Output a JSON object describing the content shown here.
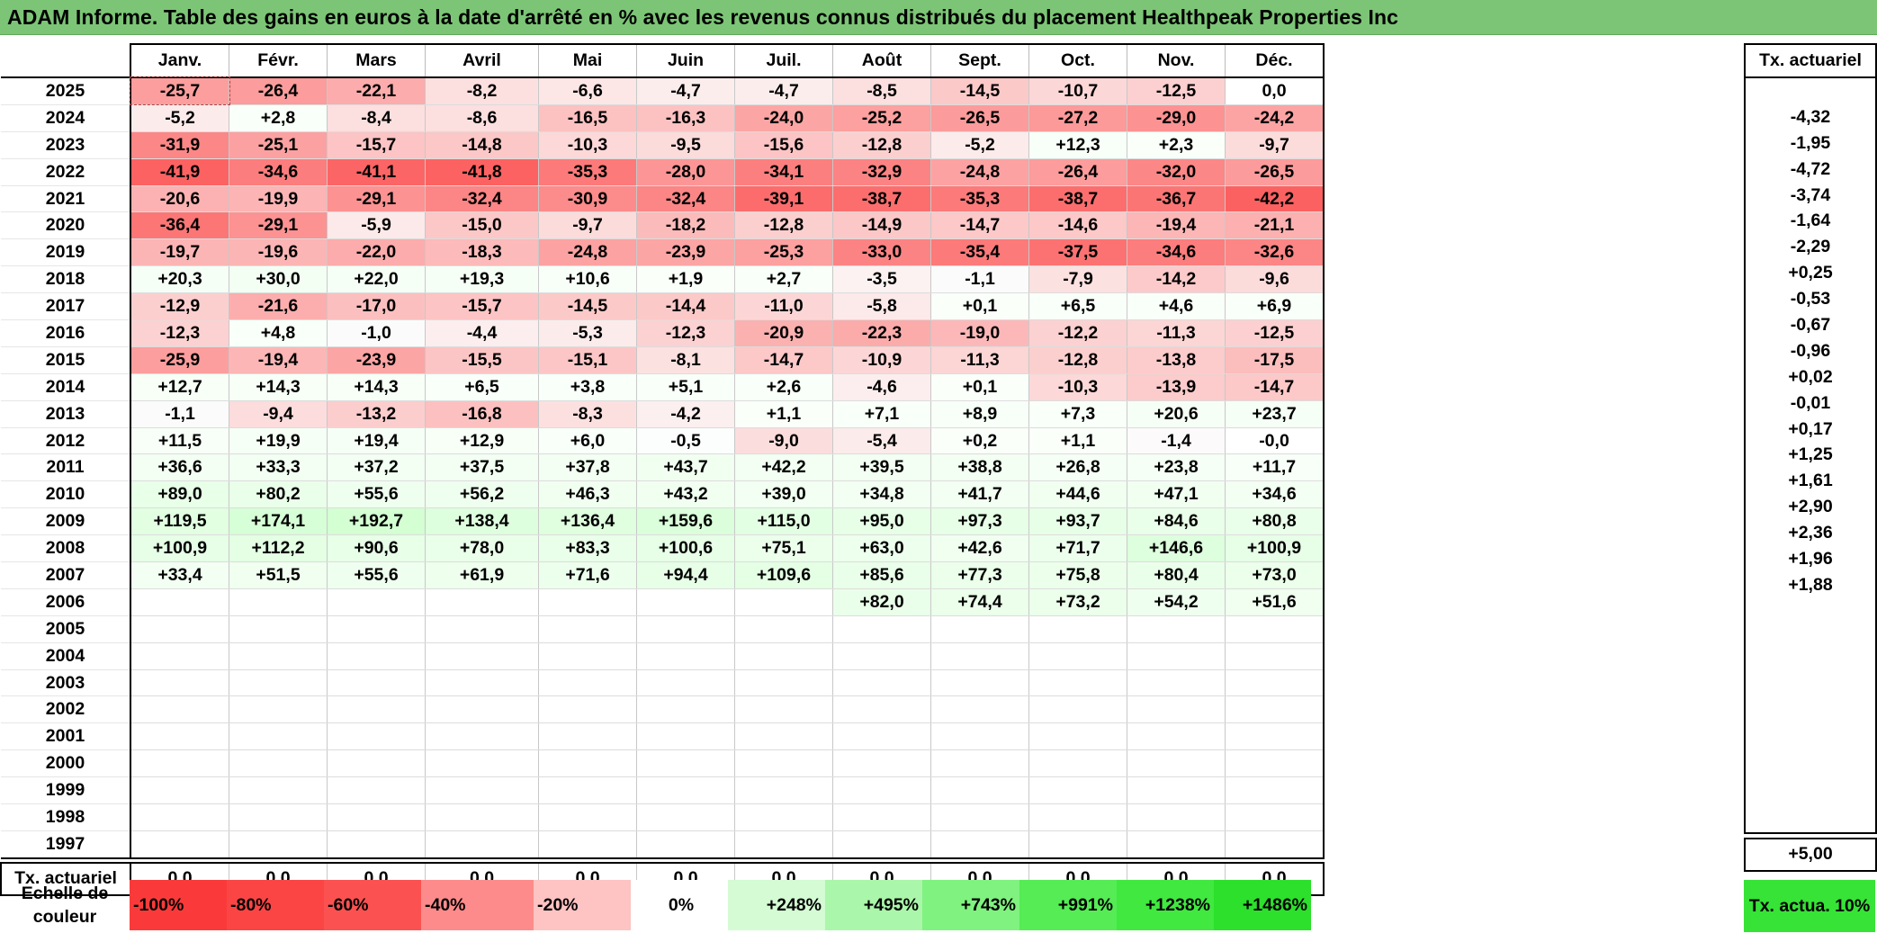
{
  "title": "ADAM Informe. Table des gains en euros à la date d'arrêté en % avec les revenus connus distribués du placement Healthpeak Properties Inc",
  "months": [
    "Janv.",
    "Févr.",
    "Mars",
    "Avril",
    "Mai",
    "Juin",
    "Juil.",
    "Août",
    "Sept.",
    "Oct.",
    "Nov.",
    "Déc."
  ],
  "tx_header": "Tx. actuariel",
  "rows": [
    {
      "year": "2025",
      "values": [
        "-25,7",
        "-26,4",
        "-22,1",
        "-8,2",
        "-6,6",
        "-4,7",
        "-4,7",
        "-8,5",
        "-14,5",
        "-10,7",
        "-12,5",
        "0,0"
      ],
      "tx": ""
    },
    {
      "year": "2024",
      "values": [
        "-5,2",
        "+2,8",
        "-8,4",
        "-8,6",
        "-16,5",
        "-16,3",
        "-24,0",
        "-25,2",
        "-26,5",
        "-27,2",
        "-29,0",
        "-24,2"
      ],
      "tx": "-4,32"
    },
    {
      "year": "2023",
      "values": [
        "-31,9",
        "-25,1",
        "-15,7",
        "-14,8",
        "-10,3",
        "-9,5",
        "-15,6",
        "-12,8",
        "-5,2",
        "+12,3",
        "+2,3",
        "-9,7"
      ],
      "tx": "-1,95"
    },
    {
      "year": "2022",
      "values": [
        "-41,9",
        "-34,6",
        "-41,1",
        "-41,8",
        "-35,3",
        "-28,0",
        "-34,1",
        "-32,9",
        "-24,8",
        "-26,4",
        "-32,0",
        "-26,5"
      ],
      "tx": "-4,72"
    },
    {
      "year": "2021",
      "values": [
        "-20,6",
        "-19,9",
        "-29,1",
        "-32,4",
        "-30,9",
        "-32,4",
        "-39,1",
        "-38,7",
        "-35,3",
        "-38,7",
        "-36,7",
        "-42,2"
      ],
      "tx": "-3,74"
    },
    {
      "year": "2020",
      "values": [
        "-36,4",
        "-29,1",
        "-5,9",
        "-15,0",
        "-9,7",
        "-18,2",
        "-12,8",
        "-14,9",
        "-14,7",
        "-14,6",
        "-19,4",
        "-21,1"
      ],
      "tx": "-1,64"
    },
    {
      "year": "2019",
      "values": [
        "-19,7",
        "-19,6",
        "-22,0",
        "-18,3",
        "-24,8",
        "-23,9",
        "-25,3",
        "-33,0",
        "-35,4",
        "-37,5",
        "-34,6",
        "-32,6"
      ],
      "tx": "-2,29"
    },
    {
      "year": "2018",
      "values": [
        "+20,3",
        "+30,0",
        "+22,0",
        "+19,3",
        "+10,6",
        "+1,9",
        "+2,7",
        "-3,5",
        "-1,1",
        "-7,9",
        "-14,2",
        "-9,6"
      ],
      "tx": "+0,25"
    },
    {
      "year": "2017",
      "values": [
        "-12,9",
        "-21,6",
        "-17,0",
        "-15,7",
        "-14,5",
        "-14,4",
        "-11,0",
        "-5,8",
        "+0,1",
        "+6,5",
        "+4,6",
        "+6,9"
      ],
      "tx": "-0,53"
    },
    {
      "year": "2016",
      "values": [
        "-12,3",
        "+4,8",
        "-1,0",
        "-4,4",
        "-5,3",
        "-12,3",
        "-20,9",
        "-22,3",
        "-19,0",
        "-12,2",
        "-11,3",
        "-12,5"
      ],
      "tx": "-0,67"
    },
    {
      "year": "2015",
      "values": [
        "-25,9",
        "-19,4",
        "-23,9",
        "-15,5",
        "-15,1",
        "-8,1",
        "-14,7",
        "-10,9",
        "-11,3",
        "-12,8",
        "-13,8",
        "-17,5"
      ],
      "tx": "-0,96"
    },
    {
      "year": "2014",
      "values": [
        "+12,7",
        "+14,3",
        "+14,3",
        "+6,5",
        "+3,8",
        "+5,1",
        "+2,6",
        "-4,6",
        "+0,1",
        "-10,3",
        "-13,9",
        "-14,7"
      ],
      "tx": "+0,02"
    },
    {
      "year": "2013",
      "values": [
        "-1,1",
        "-9,4",
        "-13,2",
        "-16,8",
        "-8,3",
        "-4,2",
        "+1,1",
        "+7,1",
        "+8,9",
        "+7,3",
        "+20,6",
        "+23,7"
      ],
      "tx": "-0,01"
    },
    {
      "year": "2012",
      "values": [
        "+11,5",
        "+19,9",
        "+19,4",
        "+12,9",
        "+6,0",
        "-0,5",
        "-9,0",
        "-5,4",
        "+0,2",
        "+1,1",
        "-1,4",
        "-0,0"
      ],
      "tx": "+0,17"
    },
    {
      "year": "2011",
      "values": [
        "+36,6",
        "+33,3",
        "+37,2",
        "+37,5",
        "+37,8",
        "+43,7",
        "+42,2",
        "+39,5",
        "+38,8",
        "+26,8",
        "+23,8",
        "+11,7"
      ],
      "tx": "+1,25"
    },
    {
      "year": "2010",
      "values": [
        "+89,0",
        "+80,2",
        "+55,6",
        "+56,2",
        "+46,3",
        "+43,2",
        "+39,0",
        "+34,8",
        "+41,7",
        "+44,6",
        "+47,1",
        "+34,6"
      ],
      "tx": "+1,61"
    },
    {
      "year": "2009",
      "values": [
        "+119,5",
        "+174,1",
        "+192,7",
        "+138,4",
        "+136,4",
        "+159,6",
        "+115,0",
        "+95,0",
        "+97,3",
        "+93,7",
        "+84,6",
        "+80,8"
      ],
      "tx": "+2,90"
    },
    {
      "year": "2008",
      "values": [
        "+100,9",
        "+112,2",
        "+90,6",
        "+78,0",
        "+83,3",
        "+100,6",
        "+75,1",
        "+63,0",
        "+42,6",
        "+71,7",
        "+146,6",
        "+100,9"
      ],
      "tx": "+2,36"
    },
    {
      "year": "2007",
      "values": [
        "+33,4",
        "+51,5",
        "+55,6",
        "+61,9",
        "+71,6",
        "+94,4",
        "+109,6",
        "+85,6",
        "+77,3",
        "+75,8",
        "+80,4",
        "+73,0"
      ],
      "tx": "+1,96"
    },
    {
      "year": "2006",
      "values": [
        "",
        "",
        "",
        "",
        "",
        "",
        "",
        "+82,0",
        "+74,4",
        "+73,2",
        "+54,2",
        "+51,6"
      ],
      "tx": "+1,88"
    },
    {
      "year": "2005",
      "values": [
        "",
        "",
        "",
        "",
        "",
        "",
        "",
        "",
        "",
        "",
        "",
        ""
      ],
      "tx": ""
    },
    {
      "year": "2004",
      "values": [
        "",
        "",
        "",
        "",
        "",
        "",
        "",
        "",
        "",
        "",
        "",
        ""
      ],
      "tx": ""
    },
    {
      "year": "2003",
      "values": [
        "",
        "",
        "",
        "",
        "",
        "",
        "",
        "",
        "",
        "",
        "",
        ""
      ],
      "tx": ""
    },
    {
      "year": "2002",
      "values": [
        "",
        "",
        "",
        "",
        "",
        "",
        "",
        "",
        "",
        "",
        "",
        ""
      ],
      "tx": ""
    },
    {
      "year": "2001",
      "values": [
        "",
        "",
        "",
        "",
        "",
        "",
        "",
        "",
        "",
        "",
        "",
        ""
      ],
      "tx": ""
    },
    {
      "year": "2000",
      "values": [
        "",
        "",
        "",
        "",
        "",
        "",
        "",
        "",
        "",
        "",
        "",
        ""
      ],
      "tx": ""
    },
    {
      "year": "1999",
      "values": [
        "",
        "",
        "",
        "",
        "",
        "",
        "",
        "",
        "",
        "",
        "",
        ""
      ],
      "tx": ""
    },
    {
      "year": "1998",
      "values": [
        "",
        "",
        "",
        "",
        "",
        "",
        "",
        "",
        "",
        "",
        "",
        ""
      ],
      "tx": ""
    },
    {
      "year": "1997",
      "values": [
        "",
        "",
        "",
        "",
        "",
        "",
        "",
        "",
        "",
        "",
        "",
        ""
      ],
      "tx": ""
    }
  ],
  "tx_row": {
    "label": "Tx. actuariel",
    "values": [
      "0,0",
      "0,0",
      "0,0",
      "0,0",
      "0,0",
      "0,0",
      "0,0",
      "0,0",
      "0,0",
      "0,0",
      "0,0",
      "0,0"
    ],
    "total": "+5,00"
  },
  "scale": {
    "label": "Echelle de couleur",
    "steps": [
      {
        "text": "-100%",
        "color": "#fa3a3a"
      },
      {
        "text": "-80%",
        "color": "#fb4545"
      },
      {
        "text": "-60%",
        "color": "#fc5151"
      },
      {
        "text": "-40%",
        "color": "#fd8b8b"
      },
      {
        "text": "-20%",
        "color": "#fec3c3"
      },
      {
        "text": "0%",
        "color": "#ffffff"
      },
      {
        "text": "+248%",
        "color": "#d4fbd4"
      },
      {
        "text": "+495%",
        "color": "#aaf6aa"
      },
      {
        "text": "+743%",
        "color": "#7ff27f"
      },
      {
        "text": "+991%",
        "color": "#55ec55"
      },
      {
        "text": "+1238%",
        "color": "#40e840"
      },
      {
        "text": "+1486%",
        "color": "#2ce02c"
      }
    ],
    "tx_label": "Tx. actua. 10%",
    "tx_color": "#36e336"
  }
}
